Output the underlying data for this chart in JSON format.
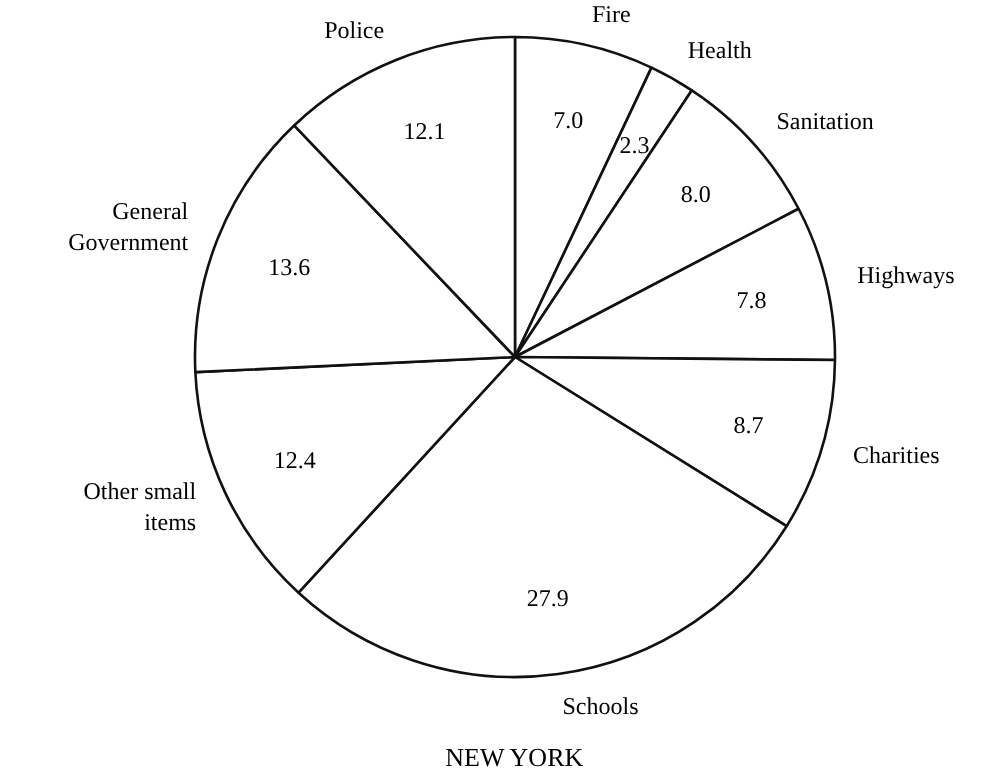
{
  "chart_data": {
    "type": "pie",
    "title": "NEW YORK",
    "categories": [
      "Fire",
      "Health",
      "Sanitation",
      "Highways",
      "Charities",
      "Schools",
      "Other small items",
      "General Government",
      "Police"
    ],
    "values": [
      7.0,
      2.3,
      8.0,
      7.8,
      8.7,
      27.9,
      12.4,
      13.6,
      12.1
    ],
    "colors": [
      "#ffffff",
      "#ffffff",
      "#ffffff",
      "#ffffff",
      "#ffffff",
      "#ffffff",
      "#ffffff",
      "#ffffff",
      "#ffffff"
    ],
    "value_labels": [
      "7.0",
      "2.3",
      "8.0",
      "7.8",
      "8.7",
      "27.9",
      "12.4",
      "13.6",
      "12.1"
    ]
  }
}
